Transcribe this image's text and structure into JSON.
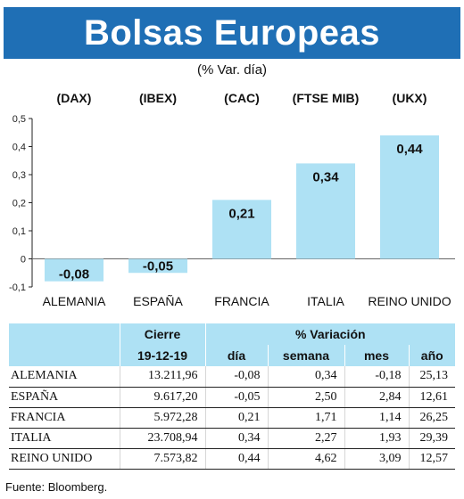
{
  "banner": {
    "title": "Bolsas Europeas"
  },
  "subtitle": "(% Var. día)",
  "chart_data": {
    "type": "bar",
    "indices": [
      "(DAX)",
      "(IBEX)",
      "(CAC)",
      "(FTSE MIB)",
      "(UKX)"
    ],
    "categories": [
      "ALEMANIA",
      "ESPAÑA",
      "FRANCIA",
      "ITALIA",
      "REINO UNIDO"
    ],
    "values": [
      -0.08,
      -0.05,
      0.21,
      0.34,
      0.44
    ],
    "value_labels": [
      "-0,08",
      "-0,05",
      "0,21",
      "0,34",
      "0,44"
    ],
    "ylim": [
      -0.1,
      0.5
    ],
    "yticks": [
      0.5,
      0.4,
      0.3,
      0.2,
      0.1,
      0,
      -0.1
    ],
    "ytick_labels": [
      "0,5",
      "0,4",
      "0,3",
      "0,2",
      "0,1",
      "0",
      "-0,1"
    ],
    "bar_color": "#aee1f4",
    "grid": false
  },
  "table": {
    "header_cierre": "Cierre",
    "header_variacion": "% Variación",
    "date": "19-12-19",
    "col_dia": "día",
    "col_semana": "semana",
    "col_mes": "mes",
    "col_anio": "año",
    "rows": [
      {
        "name": "ALEMANIA",
        "cierre": "13.211,96",
        "dia": "-0,08",
        "semana": "0,34",
        "mes": "-0,18",
        "anio": "25,13"
      },
      {
        "name": "ESPAÑA",
        "cierre": "9.617,20",
        "dia": "-0,05",
        "semana": "2,50",
        "mes": "2,84",
        "anio": "12,61"
      },
      {
        "name": "FRANCIA",
        "cierre": "5.972,28",
        "dia": "0,21",
        "semana": "1,71",
        "mes": "1,14",
        "anio": "26,25"
      },
      {
        "name": "ITALIA",
        "cierre": "23.708,94",
        "dia": "0,34",
        "semana": "2,27",
        "mes": "1,93",
        "anio": "29,39"
      },
      {
        "name": "REINO UNIDO",
        "cierre": "7.573,82",
        "dia": "0,44",
        "semana": "4,62",
        "mes": "3,09",
        "anio": "12,57"
      }
    ]
  },
  "source": "Fuente: Bloomberg."
}
